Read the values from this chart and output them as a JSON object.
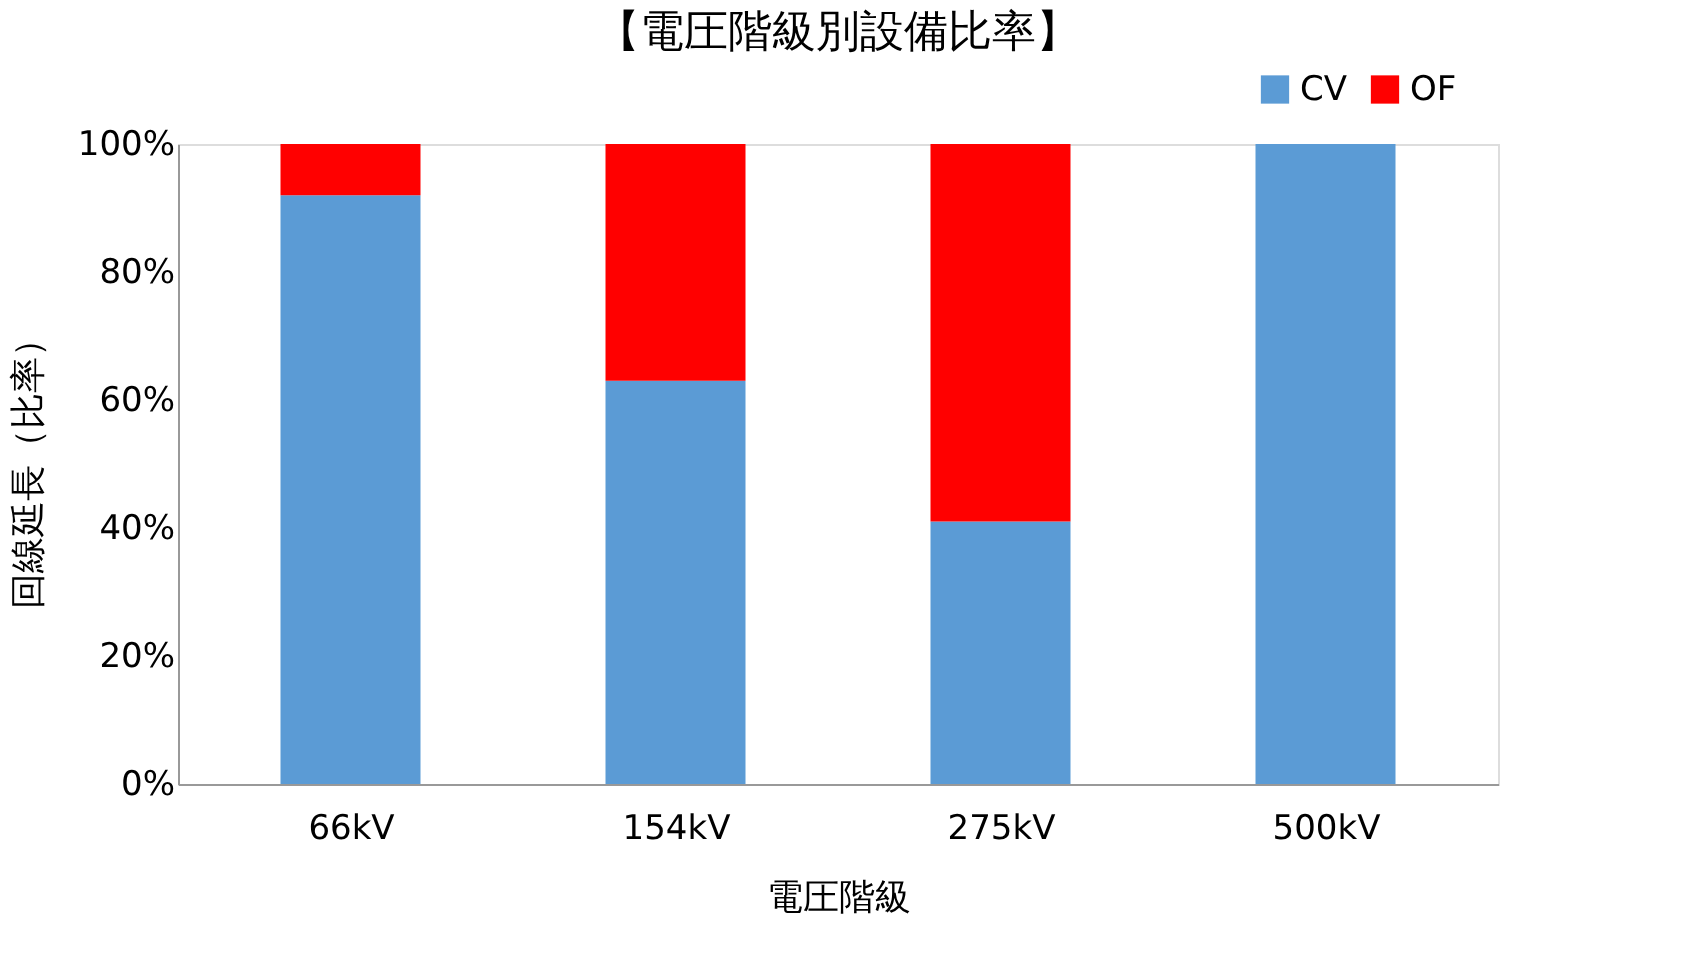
{
  "chart_data": {
    "type": "bar",
    "title": "【電圧階級別設備比率】",
    "xlabel": "電圧階級",
    "ylabel": "回線延長（比率）",
    "categories": [
      "66kV",
      "154kV",
      "275kV",
      "500kV"
    ],
    "series": [
      {
        "name": "CV",
        "color": "#5b9bd5",
        "values": [
          92,
          63,
          41,
          100
        ]
      },
      {
        "name": "OF",
        "color": "#ff0000",
        "values": [
          8,
          37,
          59,
          0
        ]
      }
    ],
    "stacked": true,
    "ylim": [
      0,
      100
    ],
    "yticks": [
      {
        "value": 0,
        "label": "0%"
      },
      {
        "value": 20,
        "label": "20%"
      },
      {
        "value": 40,
        "label": "40%"
      },
      {
        "value": 60,
        "label": "60%"
      },
      {
        "value": 80,
        "label": "80%"
      },
      {
        "value": 100,
        "label": "100%"
      }
    ],
    "grid": false,
    "legend": "top right"
  }
}
